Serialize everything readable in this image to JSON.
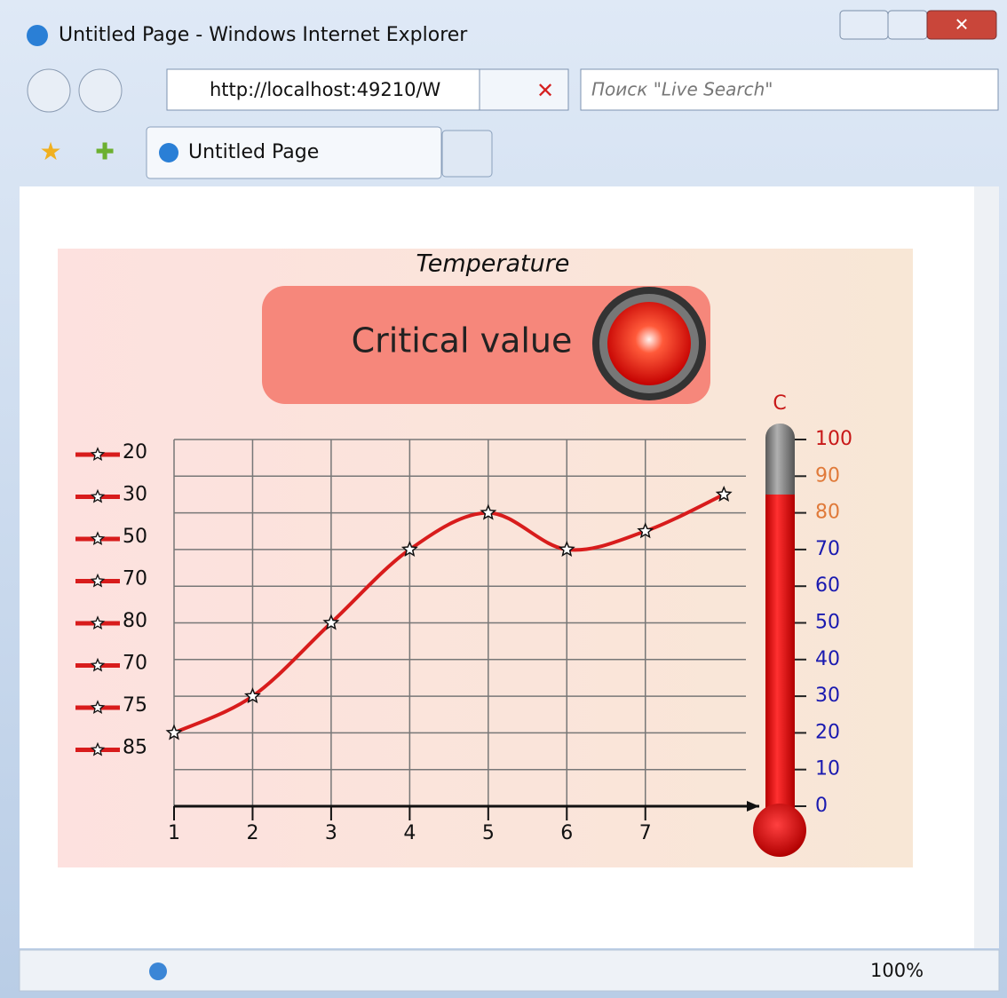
{
  "window": {
    "title": "Untitled Page - Windows Internet Explorer",
    "address": "http://localhost:49210/W",
    "search_placeholder": "Поиск \"Live Search\"",
    "tab_title": "Untitled Page",
    "zoom": "100%"
  },
  "chart_data": {
    "type": "line",
    "title": "Temperature",
    "annotation": "Critical value",
    "x": [
      1,
      2,
      3,
      4,
      5,
      6,
      7,
      8
    ],
    "values": [
      20,
      30,
      50,
      70,
      80,
      70,
      75,
      85
    ],
    "color": "#d81c1c",
    "xlim": [
      1,
      8.45
    ],
    "xticks": [
      1,
      2,
      3,
      4,
      5,
      6,
      7
    ],
    "ylim": [
      0,
      100
    ],
    "yticks": [
      0,
      10,
      20,
      30,
      40,
      50,
      60,
      70,
      80,
      90,
      100
    ],
    "ytick_colors": [
      "#1a1ab0",
      "#1a1ab0",
      "#1a1ab0",
      "#1a1ab0",
      "#1a1ab0",
      "#1a1ab0",
      "#1a1ab0",
      "#1a1ab0",
      "#e07a3a",
      "#e07a3a",
      "#c81818"
    ],
    "thermometer_label": "C",
    "grid": true
  }
}
